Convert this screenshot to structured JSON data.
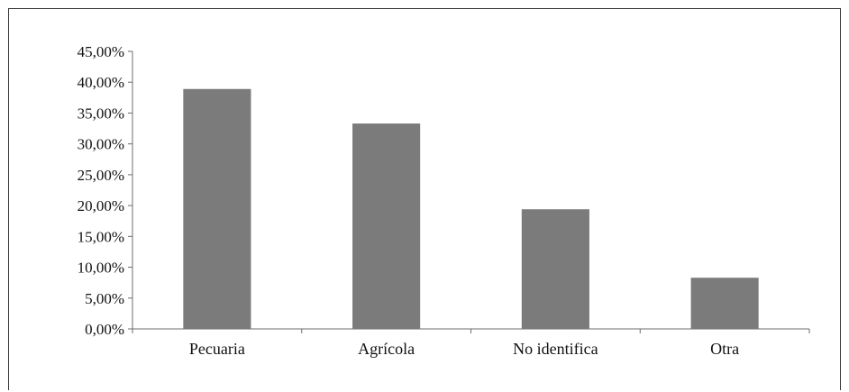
{
  "chart_data": {
    "type": "bar",
    "categories": [
      "Pecuaria",
      "Agrícola",
      "No identifica",
      "Otra"
    ],
    "values": [
      38.9,
      33.3,
      19.4,
      8.3
    ],
    "ylim": [
      0,
      45
    ],
    "yticks": [
      0,
      5,
      10,
      15,
      20,
      25,
      30,
      35,
      40,
      45
    ],
    "ytick_labels": [
      "0,00%",
      "5,00%",
      "10,00%",
      "15,00%",
      "20,00%",
      "25,00%",
      "30,00%",
      "35,00%",
      "40,00%",
      "45,00%"
    ],
    "grid": false,
    "legend": "none",
    "colors": {
      "bar": "#7b7b7b",
      "axis": "#6e6e6e",
      "frame": "#3a3a3a"
    }
  }
}
